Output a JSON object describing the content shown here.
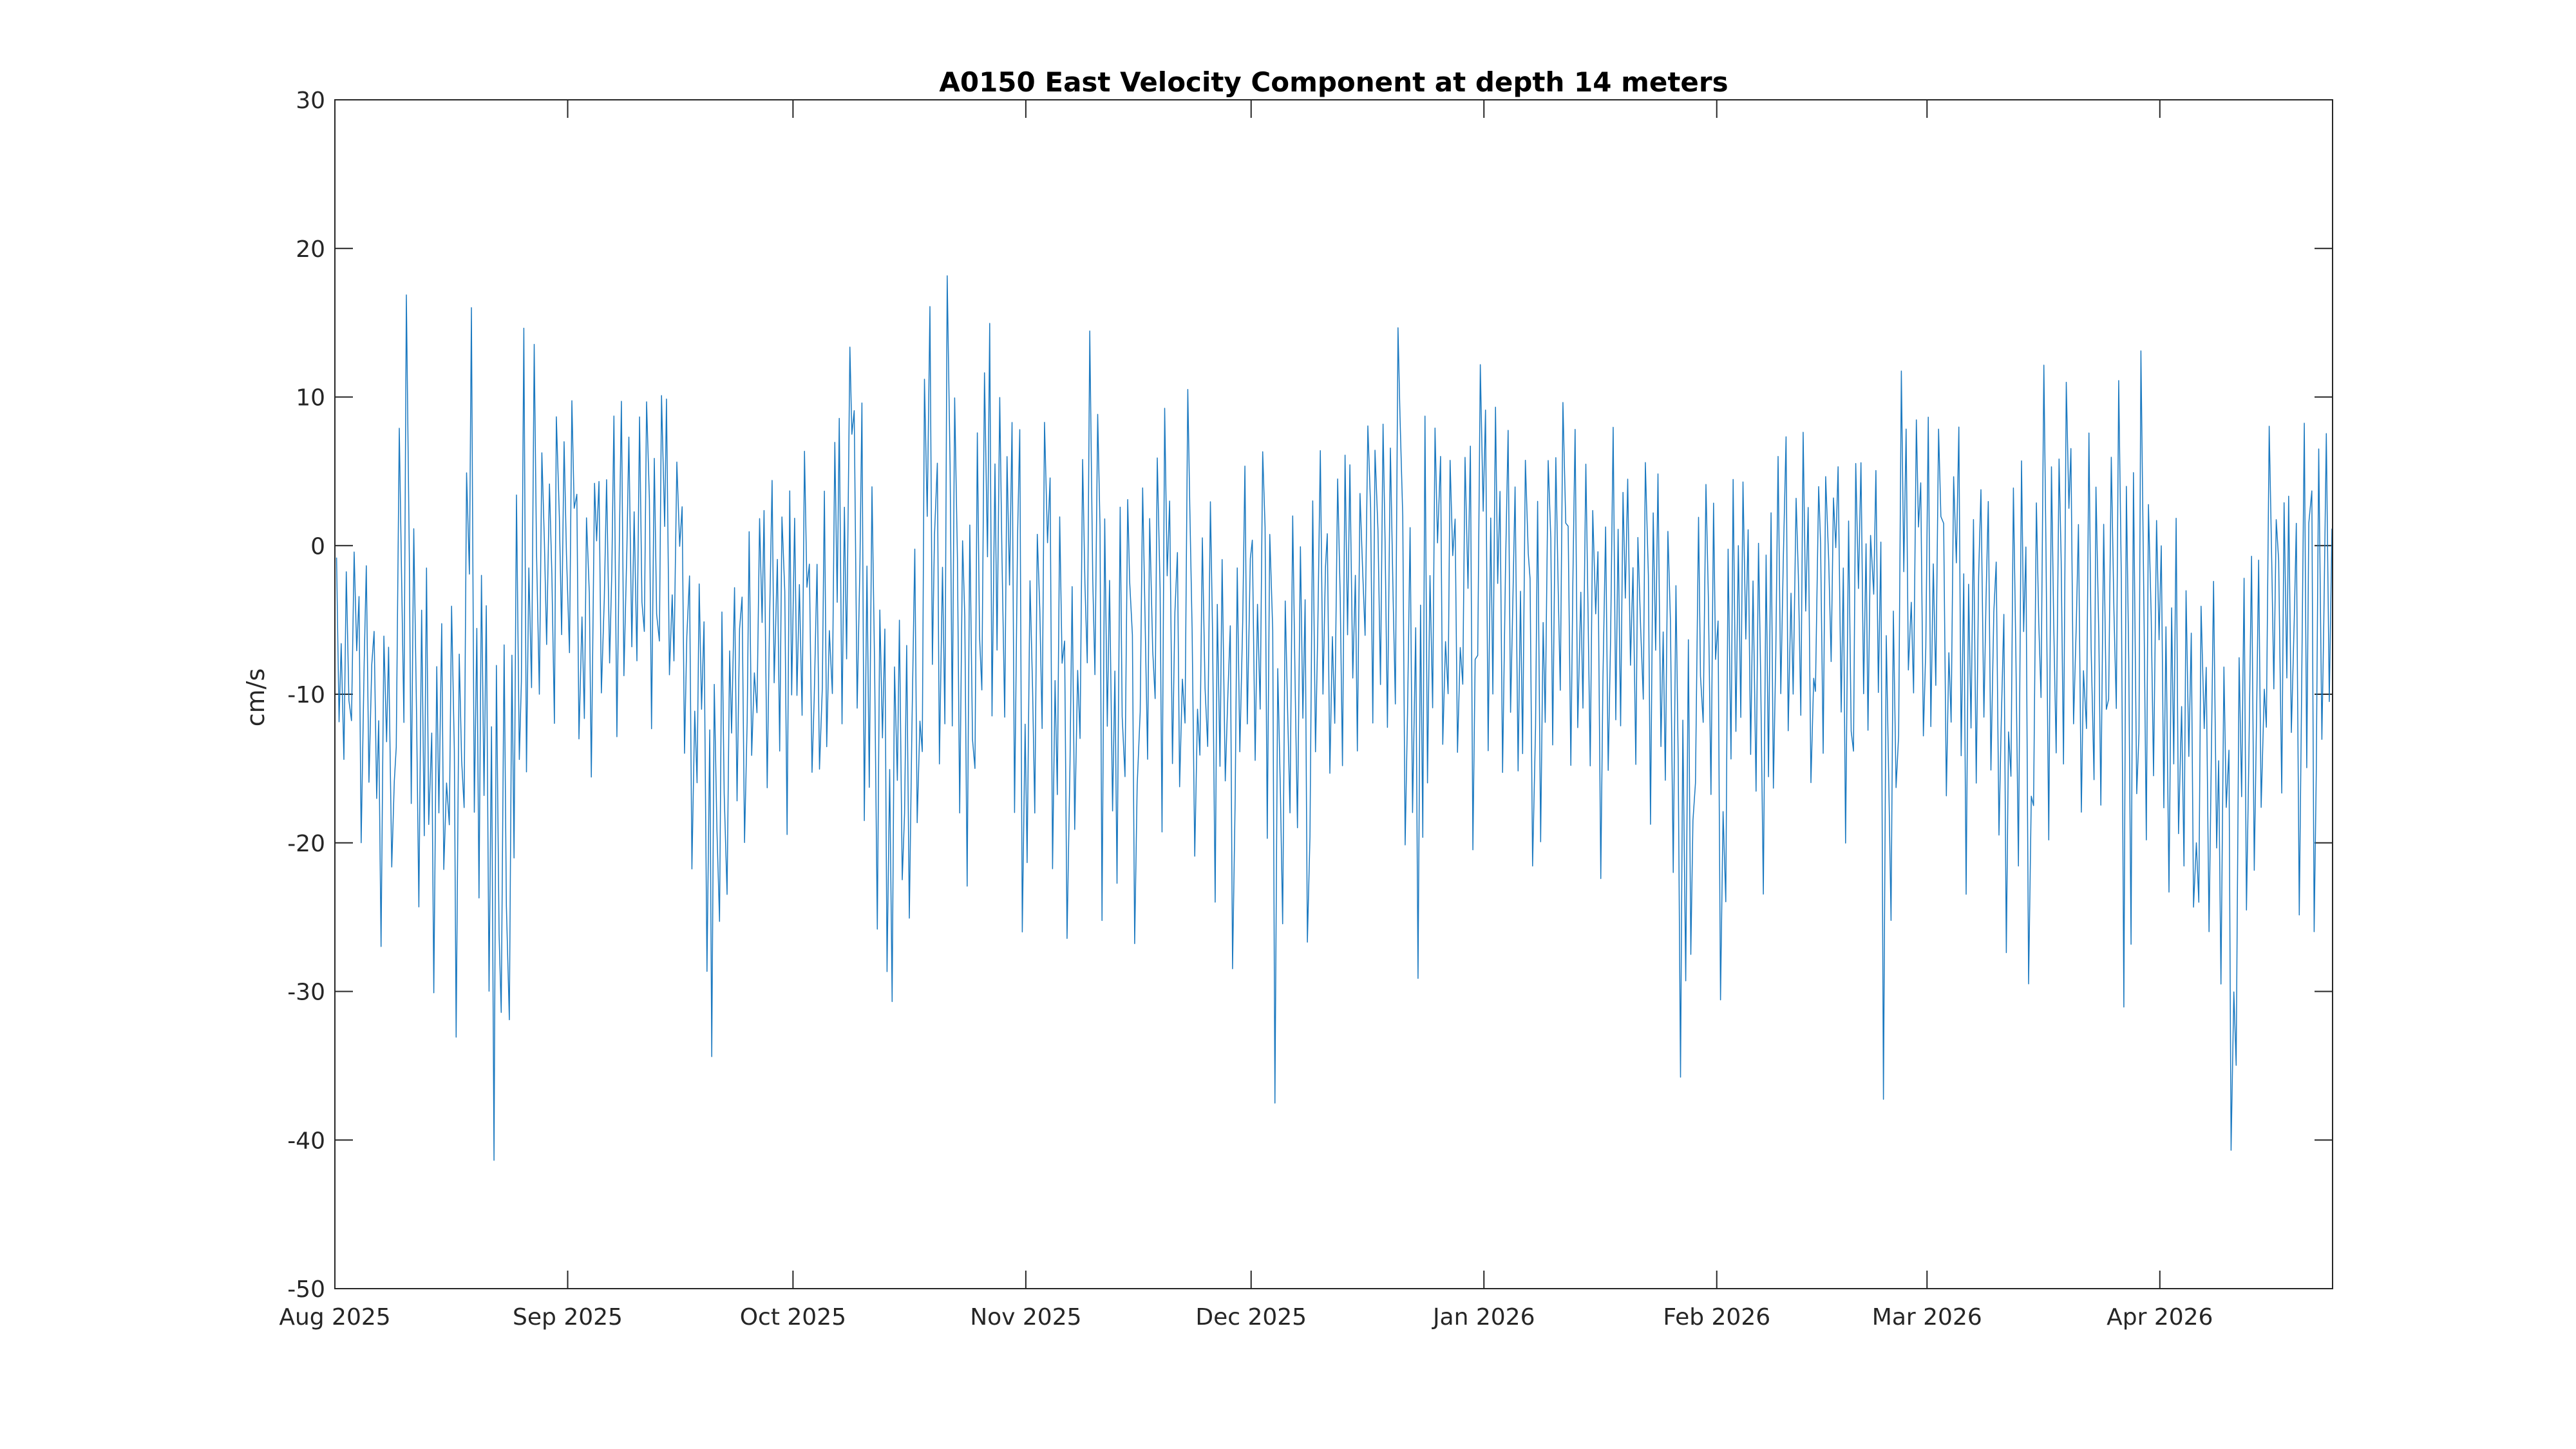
{
  "chart_data": {
    "type": "line",
    "title": "A0150 East Velocity Component at depth 14 meters",
    "ylabel": "cm/s",
    "xlabel": "",
    "ylim": [
      -50,
      30
    ],
    "y_ticks": [
      30,
      20,
      10,
      0,
      -10,
      -20,
      -30,
      -40,
      -50
    ],
    "x_ticks": [
      {
        "label": "Aug 2025",
        "day": 0
      },
      {
        "label": "Sep 2025",
        "day": 31
      },
      {
        "label": "Oct 2025",
        "day": 61
      },
      {
        "label": "Nov 2025",
        "day": 92
      },
      {
        "label": "Dec 2025",
        "day": 122
      },
      {
        "label": "Jan 2026",
        "day": 153
      },
      {
        "label": "Feb 2026",
        "day": 184
      },
      {
        "label": "Mar 2026",
        "day": 212
      },
      {
        "label": "Apr 2026",
        "day": 243
      }
    ],
    "x_range_days": 266,
    "grid": false,
    "legend": "none",
    "box": true,
    "tick_direction": "in",
    "line_color": "#0F72BD",
    "series_name": "east velocity",
    "sampling_note": "high-frequency series summarized as daily [min,max] envelope; day 0 = Aug 1 2025",
    "daily_envelope": [
      [
        -13,
        0
      ],
      [
        -15,
        -1
      ],
      [
        -12,
        0
      ],
      [
        -20,
        -2
      ],
      [
        -16,
        -1
      ],
      [
        -18,
        -3
      ],
      [
        -27,
        -5
      ],
      [
        -24,
        -6
      ],
      [
        -14,
        9.7
      ],
      [
        -12,
        20
      ],
      [
        -18,
        2
      ],
      [
        -28,
        -4
      ],
      [
        -20,
        0
      ],
      [
        -34,
        -6
      ],
      [
        -22,
        -4
      ],
      [
        -20,
        -2
      ],
      [
        -35,
        -5
      ],
      [
        -18,
        5
      ],
      [
        -20,
        16.7
      ],
      [
        -24,
        -2
      ],
      [
        -30,
        -4
      ],
      [
        -42,
        -8
      ],
      [
        -36,
        -6
      ],
      [
        -32,
        -4
      ],
      [
        -18,
        6
      ],
      [
        -20,
        22
      ],
      [
        -12,
        16
      ],
      [
        -10,
        8.5
      ],
      [
        -8,
        5
      ],
      [
        -12,
        9
      ],
      [
        -6,
        7
      ],
      [
        -10,
        9.8
      ],
      [
        -14,
        4
      ],
      [
        -12,
        2
      ],
      [
        -17,
        9
      ],
      [
        -10,
        6
      ],
      [
        -8,
        5
      ],
      [
        -13,
        9.6
      ],
      [
        -9,
        10.8
      ],
      [
        -7,
        8
      ],
      [
        -11,
        9.5
      ],
      [
        -6,
        10
      ],
      [
        -13,
        7
      ],
      [
        -8,
        11.2
      ],
      [
        -12,
        11.8
      ],
      [
        -10,
        6
      ],
      [
        -14,
        3
      ],
      [
        -22,
        0
      ],
      [
        -16,
        -2
      ],
      [
        -29,
        -5
      ],
      [
        -36.5,
        -8
      ],
      [
        -26,
        -4
      ],
      [
        -24,
        -3
      ],
      [
        -18,
        0
      ],
      [
        -20,
        -2
      ],
      [
        -16,
        1
      ],
      [
        -12,
        5
      ],
      [
        -18,
        3
      ],
      [
        -10,
        4.7
      ],
      [
        -14,
        2
      ],
      [
        -20,
        6
      ],
      [
        -12,
        5
      ],
      [
        -15,
        8.2
      ],
      [
        -18,
        2
      ],
      [
        -16,
        0
      ],
      [
        -14,
        4
      ],
      [
        -10,
        7
      ],
      [
        -12,
        10
      ],
      [
        -8,
        14.9
      ],
      [
        -11,
        13.3
      ],
      [
        -20,
        10
      ],
      [
        -18,
        4
      ],
      [
        -26,
        -2
      ],
      [
        -31,
        -5
      ],
      [
        -33,
        -8
      ],
      [
        -25,
        -4
      ],
      [
        -28,
        -6
      ],
      [
        -20,
        0
      ],
      [
        -14,
        16.6
      ],
      [
        -10,
        17
      ],
      [
        -16,
        8
      ],
      [
        -12,
        18.3
      ],
      [
        -14,
        10
      ],
      [
        -18,
        4
      ],
      [
        -23,
        2
      ],
      [
        -15,
        8
      ],
      [
        -10,
        16.8
      ],
      [
        -12,
        15.8
      ],
      [
        -8,
        13
      ],
      [
        -14,
        6
      ],
      [
        -18,
        9
      ],
      [
        -26,
        15.5
      ],
      [
        -22,
        -2
      ],
      [
        -18,
        3
      ],
      [
        -14,
        8.4
      ],
      [
        -25,
        5
      ],
      [
        -20,
        2
      ],
      [
        -30,
        -3
      ],
      [
        -22,
        0
      ],
      [
        -16,
        6
      ],
      [
        -12,
        15.7
      ],
      [
        -10,
        12.7
      ],
      [
        -28,
        4
      ],
      [
        -20,
        2
      ],
      [
        -24,
        8
      ],
      [
        -18,
        5
      ],
      [
        -27,
        -2
      ],
      [
        -14,
        4
      ],
      [
        -16,
        2
      ],
      [
        -12,
        6
      ],
      [
        -20,
        9.9
      ],
      [
        -15,
        3
      ],
      [
        -18,
        0
      ],
      [
        -12,
        11
      ],
      [
        -22,
        -2
      ],
      [
        -16,
        2
      ],
      [
        -14,
        5
      ],
      [
        -24,
        0
      ],
      [
        -18,
        3
      ],
      [
        -28.5,
        -4
      ],
      [
        -16,
        2
      ],
      [
        -12,
        6
      ],
      [
        -16,
        4
      ],
      [
        -12,
        8.7
      ],
      [
        -20,
        2
      ],
      [
        -38.5,
        -6
      ],
      [
        -26,
        -2
      ],
      [
        -18,
        2
      ],
      [
        -22,
        0
      ],
      [
        -28,
        -3
      ],
      [
        -14,
        4
      ],
      [
        -10,
        6.5
      ],
      [
        -16,
        3
      ],
      [
        -12,
        5
      ],
      [
        -15,
        7
      ],
      [
        -10,
        9
      ],
      [
        -14,
        6
      ],
      [
        -8,
        10.2
      ],
      [
        -12,
        8
      ],
      [
        -10,
        12
      ],
      [
        -14,
        10
      ],
      [
        -12,
        19.7
      ],
      [
        -22,
        4
      ],
      [
        -18,
        2
      ],
      [
        -30,
        -4
      ],
      [
        -16,
        11.9
      ],
      [
        -12,
        8
      ],
      [
        -14,
        6
      ],
      [
        -10,
        8.9
      ],
      [
        -16,
        4
      ],
      [
        -12,
        6
      ],
      [
        -25,
        9.8
      ],
      [
        -10,
        12.5
      ],
      [
        -14,
        9.5
      ],
      [
        -10,
        10
      ],
      [
        -16,
        6
      ],
      [
        -12,
        8
      ],
      [
        -18,
        4
      ],
      [
        -14,
        7
      ],
      [
        -25,
        0
      ],
      [
        -20,
        3
      ],
      [
        -12,
        8.2
      ],
      [
        -15,
        6
      ],
      [
        -10,
        9.9
      ],
      [
        -17.5,
        5
      ],
      [
        -14,
        8
      ],
      [
        -11,
        6
      ],
      [
        -16,
        4
      ],
      [
        -24,
        2
      ],
      [
        -18,
        6
      ],
      [
        -12,
        8
      ],
      [
        -14,
        5
      ],
      [
        -10,
        7
      ],
      [
        -16,
        3
      ],
      [
        -12,
        6
      ],
      [
        -19,
        4
      ],
      [
        -14,
        7
      ],
      [
        -16,
        2
      ],
      [
        -22,
        0
      ],
      [
        -39.6,
        -8
      ],
      [
        -28,
        -4
      ],
      [
        -16,
        2
      ],
      [
        -12,
        6
      ],
      [
        -18,
        4
      ],
      [
        -31.6,
        -2
      ],
      [
        -24,
        2
      ],
      [
        -14,
        7.5
      ],
      [
        -12,
        5
      ],
      [
        -16,
        4
      ],
      [
        -18,
        2
      ],
      [
        -27,
        0
      ],
      [
        -20,
        3
      ],
      [
        -12,
        6
      ],
      [
        -14,
        8
      ],
      [
        -10,
        5
      ],
      [
        -13,
        8
      ],
      [
        -16,
        4
      ],
      [
        -11,
        6
      ],
      [
        -14,
        7
      ],
      [
        -9,
        5
      ],
      [
        -12,
        8
      ],
      [
        -20.5,
        3
      ],
      [
        -14,
        6
      ],
      [
        -10,
        7.2
      ],
      [
        -15,
        4
      ],
      [
        -12,
        6
      ],
      [
        -37.3,
        -6
      ],
      [
        -26,
        0
      ],
      [
        -14,
        13.9
      ],
      [
        -10,
        8
      ],
      [
        -12,
        12.8
      ],
      [
        -16,
        6
      ],
      [
        -14,
        9
      ],
      [
        -10,
        8
      ],
      [
        -17,
        5
      ],
      [
        -12,
        7
      ],
      [
        -15,
        8.3
      ],
      [
        -23.5,
        2
      ],
      [
        -16,
        4
      ],
      [
        -12,
        6
      ],
      [
        -18,
        3
      ],
      [
        -20,
        1
      ],
      [
        -27.8,
        -2
      ],
      [
        -16,
        4
      ],
      [
        -22,
        6
      ],
      [
        -30.6,
        0
      ],
      [
        -18,
        8
      ],
      [
        -12,
        12.8
      ],
      [
        -22.7,
        10.6
      ],
      [
        -14,
        6
      ],
      [
        -16,
        11
      ],
      [
        -12,
        7
      ],
      [
        -18,
        4
      ],
      [
        -14,
        8
      ],
      [
        -16,
        5
      ],
      [
        -20,
        3
      ],
      [
        -12,
        6
      ],
      [
        -12,
        13.1
      ],
      [
        -32.6,
        4
      ],
      [
        -27,
        5
      ],
      [
        -14,
        13.2
      ],
      [
        -20,
        6
      ],
      [
        -16,
        3
      ],
      [
        -18,
        0
      ],
      [
        -25,
        -2
      ],
      [
        -20,
        2
      ],
      [
        -22,
        -3
      ],
      [
        -28,
        -5
      ],
      [
        -24,
        -4
      ],
      [
        -26,
        -6
      ],
      [
        -22,
        -2
      ],
      [
        -30,
        -8
      ],
      [
        -42.2,
        -10
      ],
      [
        -38.3,
        -6
      ],
      [
        -26,
        -2
      ],
      [
        -22,
        3
      ],
      [
        -18,
        0
      ],
      [
        -16,
        9.6
      ],
      [
        -12,
        5
      ],
      [
        -18,
        7
      ],
      [
        -14,
        4
      ],
      [
        -29.9,
        2
      ],
      [
        -16,
        12.2
      ],
      [
        -26,
        5
      ],
      [
        -14,
        9.9
      ],
      [
        -12,
        10.4
      ]
    ]
  }
}
